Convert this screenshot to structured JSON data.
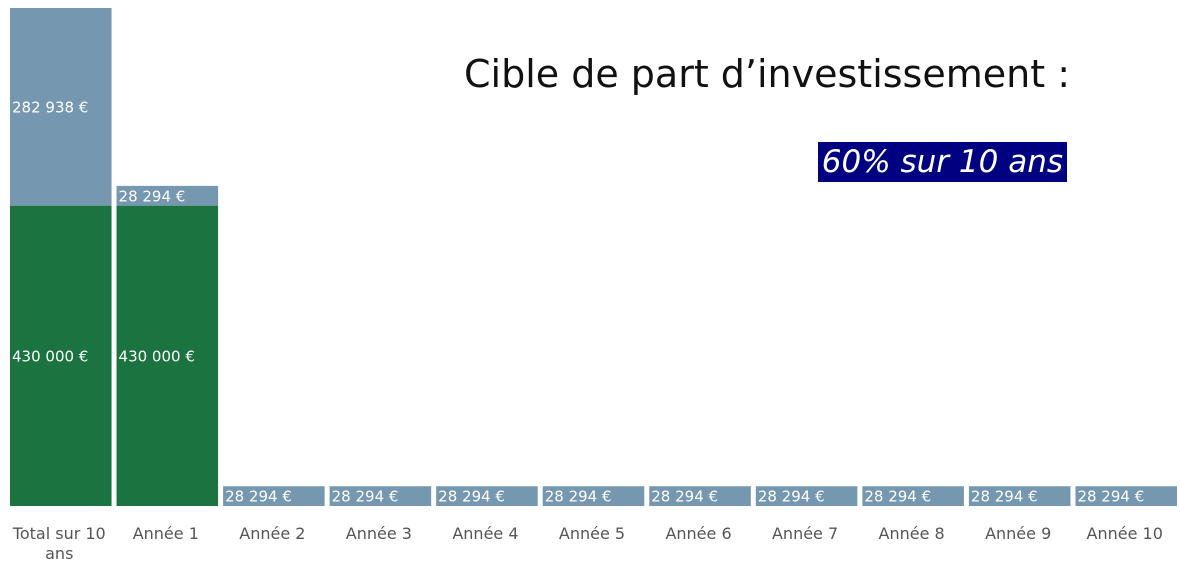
{
  "chart_data": {
    "type": "stacked_bar",
    "title": "Cible de part d’investissement :",
    "subtitle": "60% sur 10 ans",
    "categories": [
      "Total sur 10 ans",
      "Année 1",
      "Année 2",
      "Année 3",
      "Année 4",
      "Année 5",
      "Année 6",
      "Année 7",
      "Année 8",
      "Année 9",
      "Année 10"
    ],
    "series": [
      {
        "color": "#1b7340",
        "values": [
          430000,
          430000,
          0,
          0,
          0,
          0,
          0,
          0,
          0,
          0,
          0
        ],
        "value_labels": [
          "430 000 €",
          "430 000 €",
          null,
          null,
          null,
          null,
          null,
          null,
          null,
          null,
          null
        ]
      },
      {
        "color": "#7598b0",
        "values": [
          282938,
          28294,
          28294,
          28294,
          28294,
          28294,
          28294,
          28294,
          28294,
          28294,
          28294
        ],
        "value_labels": [
          "282 938 €",
          "28 294 €",
          "28 294 €",
          "28 294 €",
          "28 294 €",
          "28 294 €",
          "28 294 €",
          "28 294 €",
          "28 294 €",
          "28 294 €",
          "28 294 €"
        ]
      }
    ]
  }
}
